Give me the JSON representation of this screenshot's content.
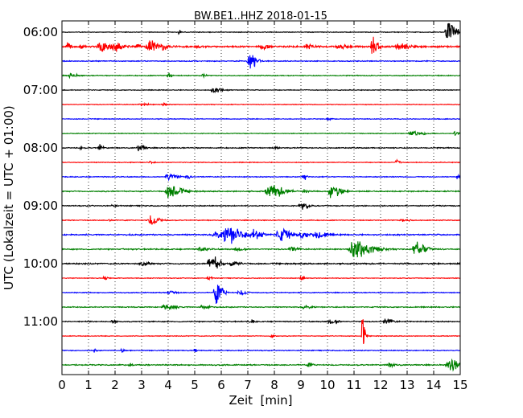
{
  "chart_data": {
    "type": "line",
    "title": "BW.BE1..HHZ 2018-01-15",
    "xlabel": "Zeit  [min]",
    "ylabel": "UTC (Lokalzeit = UTC + 01:00)",
    "xlim": [
      0,
      15
    ],
    "x_ticks": [
      "0",
      "1",
      "2",
      "3",
      "4",
      "5",
      "6",
      "7",
      "8",
      "9",
      "10",
      "11",
      "12",
      "13",
      "14",
      "15"
    ],
    "y_ticks": [
      {
        "label": "06:00",
        "row": 0
      },
      {
        "label": "07:00",
        "row": 4
      },
      {
        "label": "08:00",
        "row": 8
      },
      {
        "label": "09:00",
        "row": 12
      },
      {
        "label": "10:00",
        "row": 16
      },
      {
        "label": "11:00",
        "row": 20
      }
    ],
    "grid": {
      "x_dotted": true
    },
    "row_colors": [
      "#000000",
      "#ff0000",
      "#0000ff",
      "#008000"
    ],
    "rows": [
      {
        "start": "06:00",
        "noise": 0.5,
        "events": [
          [
            4.4,
            3,
            0.05
          ],
          [
            14.55,
            14,
            0.25
          ]
        ]
      },
      {
        "start": "06:15",
        "noise": 1.2,
        "events": [
          [
            0.2,
            5,
            0.1
          ],
          [
            0.7,
            3,
            0.1
          ],
          [
            1.5,
            6,
            0.4
          ],
          [
            2.0,
            4,
            0.2
          ],
          [
            2.8,
            4,
            0.1
          ],
          [
            3.3,
            8,
            0.3
          ],
          [
            3.8,
            3,
            0.1
          ],
          [
            5.0,
            2,
            0.1
          ],
          [
            7.5,
            3,
            0.2
          ],
          [
            9.2,
            3,
            0.2
          ],
          [
            10.4,
            3,
            0.2
          ],
          [
            11.7,
            14,
            0.15
          ],
          [
            12.7,
            4,
            0.3
          ]
        ]
      },
      {
        "start": "06:30",
        "noise": 0.6,
        "events": [
          [
            7.05,
            17,
            0.2
          ]
        ]
      },
      {
        "start": "06:45",
        "noise": 0.6,
        "events": [
          [
            0.3,
            3,
            0.2
          ],
          [
            4.0,
            4,
            0.1
          ],
          [
            5.3,
            2,
            0.1
          ]
        ]
      },
      {
        "start": "07:00",
        "noise": 0.5,
        "events": [
          [
            5.7,
            3,
            0.3
          ]
        ]
      },
      {
        "start": "07:15",
        "noise": 0.5,
        "events": [
          [
            3.0,
            2,
            0.2
          ],
          [
            3.8,
            3,
            0.1
          ]
        ]
      },
      {
        "start": "07:30",
        "noise": 0.5,
        "events": [
          [
            10.0,
            2,
            0.1
          ]
        ]
      },
      {
        "start": "07:45",
        "noise": 0.5,
        "events": [
          [
            13.2,
            4,
            0.3
          ],
          [
            14.8,
            3,
            0.1
          ]
        ]
      },
      {
        "start": "08:00",
        "noise": 0.7,
        "events": [
          [
            0.7,
            3,
            0.05
          ],
          [
            1.4,
            5,
            0.1
          ],
          [
            2.9,
            5,
            0.15
          ],
          [
            8.0,
            2,
            0.1
          ]
        ]
      },
      {
        "start": "08:15",
        "noise": 0.5,
        "events": [
          [
            3.3,
            2,
            0.1
          ],
          [
            12.6,
            3,
            0.1
          ]
        ]
      },
      {
        "start": "08:30",
        "noise": 0.6,
        "events": [
          [
            4.0,
            6,
            0.25
          ],
          [
            4.7,
            3,
            0.1
          ],
          [
            9.1,
            4,
            0.1
          ],
          [
            14.9,
            3,
            0.1
          ]
        ]
      },
      {
        "start": "08:45",
        "noise": 0.8,
        "events": [
          [
            4.05,
            9,
            0.35
          ],
          [
            7.85,
            9,
            0.4
          ],
          [
            9.1,
            3,
            0.1
          ],
          [
            10.15,
            10,
            0.25
          ]
        ]
      },
      {
        "start": "09:00",
        "noise": 0.7,
        "events": [
          [
            1.9,
            2,
            0.1
          ],
          [
            9.0,
            5,
            0.2
          ]
        ]
      },
      {
        "start": "09:15",
        "noise": 0.6,
        "events": [
          [
            1.8,
            2,
            0.1
          ],
          [
            3.35,
            7,
            0.25
          ],
          [
            12.8,
            2,
            0.2
          ]
        ]
      },
      {
        "start": "09:30",
        "noise": 0.9,
        "events": [
          [
            5.8,
            4,
            0.3
          ],
          [
            6.25,
            12,
            0.4
          ],
          [
            7.2,
            6,
            0.3
          ],
          [
            8.2,
            9,
            0.3
          ],
          [
            9.0,
            4,
            0.3
          ],
          [
            9.6,
            4,
            0.3
          ]
        ]
      },
      {
        "start": "09:45",
        "noise": 0.8,
        "events": [
          [
            5.2,
            3,
            0.2
          ],
          [
            6.6,
            3,
            0.2
          ],
          [
            8.6,
            3,
            0.2
          ],
          [
            11.05,
            14,
            0.5
          ],
          [
            13.35,
            10,
            0.3
          ]
        ]
      },
      {
        "start": "10:00",
        "noise": 0.9,
        "events": [
          [
            3.0,
            3,
            0.2
          ],
          [
            5.6,
            13,
            0.25
          ],
          [
            6.4,
            3,
            0.2
          ]
        ]
      },
      {
        "start": "10:15",
        "noise": 0.5,
        "events": [
          [
            1.6,
            3,
            0.1
          ],
          [
            5.5,
            3,
            0.1
          ],
          [
            9.0,
            3,
            0.1
          ]
        ]
      },
      {
        "start": "10:30",
        "noise": 0.6,
        "events": [
          [
            4.0,
            3,
            0.2
          ],
          [
            5.8,
            14,
            0.2
          ],
          [
            6.7,
            3,
            0.2
          ]
        ]
      },
      {
        "start": "10:45",
        "noise": 0.7,
        "events": [
          [
            3.9,
            4,
            0.3
          ],
          [
            5.3,
            3,
            0.2
          ],
          [
            9.1,
            2,
            0.2
          ]
        ]
      },
      {
        "start": "11:00",
        "noise": 0.7,
        "events": [
          [
            1.9,
            3,
            0.1
          ],
          [
            7.1,
            3,
            0.1
          ],
          [
            10.1,
            4,
            0.2
          ],
          [
            12.2,
            4,
            0.2
          ]
        ]
      },
      {
        "start": "11:15",
        "noise": 0.5,
        "events": [
          [
            7.9,
            4,
            0.1
          ],
          [
            11.3,
            28,
            0.08
          ]
        ]
      },
      {
        "start": "11:30",
        "noise": 0.6,
        "events": [
          [
            1.2,
            3,
            0.05
          ],
          [
            2.25,
            4,
            0.05
          ],
          [
            5.0,
            4,
            0.05
          ]
        ]
      },
      {
        "start": "11:45",
        "noise": 0.8,
        "events": [
          [
            2.5,
            3,
            0.1
          ],
          [
            9.3,
            3,
            0.1
          ],
          [
            12.3,
            3,
            0.2
          ],
          [
            14.6,
            9,
            0.3
          ]
        ]
      }
    ]
  }
}
